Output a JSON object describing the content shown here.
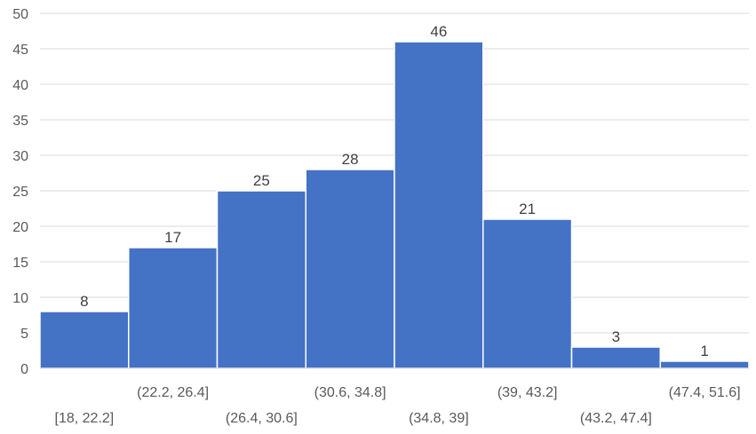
{
  "chart_data": {
    "type": "bar",
    "categories": [
      "[18, 22.2]",
      "(22.2, 26.4]",
      "(26.4, 30.6]",
      "(30.6, 34.8]",
      "(34.8, 39]",
      "(39, 43.2]",
      "(43.2, 47.4]",
      "(47.4, 51.6]"
    ],
    "values": [
      8,
      17,
      25,
      28,
      46,
      21,
      3,
      1
    ],
    "title": "",
    "xlabel": "",
    "ylabel": "",
    "ylim": [
      0,
      50
    ],
    "yticks": [
      0,
      5,
      10,
      15,
      20,
      25,
      30,
      35,
      40,
      45,
      50
    ],
    "grid": true,
    "bar_color": "#4472C4",
    "gridline_color": "#d9d9d9"
  }
}
